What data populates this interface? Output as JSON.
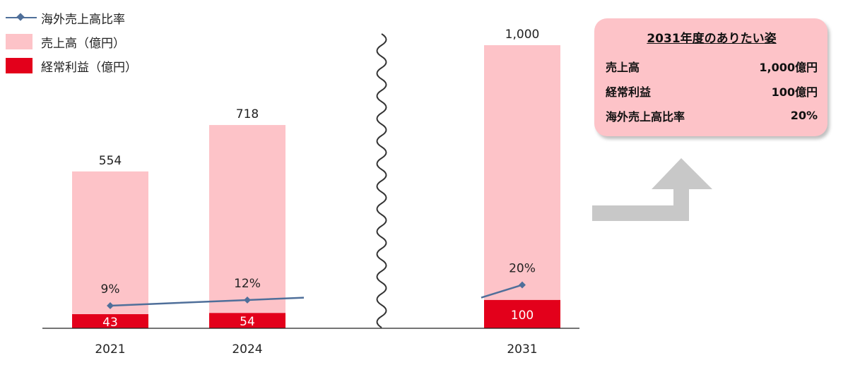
{
  "legend": {
    "items": [
      {
        "label": "海外売上高比率",
        "kind": "line",
        "color": "#4f6f9a"
      },
      {
        "label": "売上高（億円）",
        "kind": "box",
        "color": "#fdc3c8"
      },
      {
        "label": "経常利益（億円）",
        "kind": "box",
        "color": "#e3001b"
      }
    ]
  },
  "chart_data": {
    "type": "bar",
    "categories": [
      "2021",
      "2024",
      "2031"
    ],
    "series": [
      {
        "name": "売上高（億円）",
        "values": [
          554,
          718,
          1000
        ],
        "color": "#fdc3c8"
      },
      {
        "name": "経常利益（億円）",
        "values": [
          43,
          54,
          100
        ],
        "color": "#e3001b"
      },
      {
        "name": "海外売上高比率",
        "type": "line",
        "values": [
          9,
          12,
          20
        ],
        "value_labels": [
          "9%",
          "12%",
          "20%"
        ],
        "color": "#4f6f9a"
      }
    ],
    "axis_break": "between 2024 and 2031",
    "grid": false
  },
  "summary": {
    "title": "2031年度のありたい姿",
    "rows": [
      {
        "label": "売上高",
        "value": "1,000億円"
      },
      {
        "label": "経常利益",
        "value": "100億円"
      },
      {
        "label": "海外売上高比率",
        "value": "20%"
      }
    ]
  },
  "arrow": {
    "color": "#c8c8c8"
  }
}
